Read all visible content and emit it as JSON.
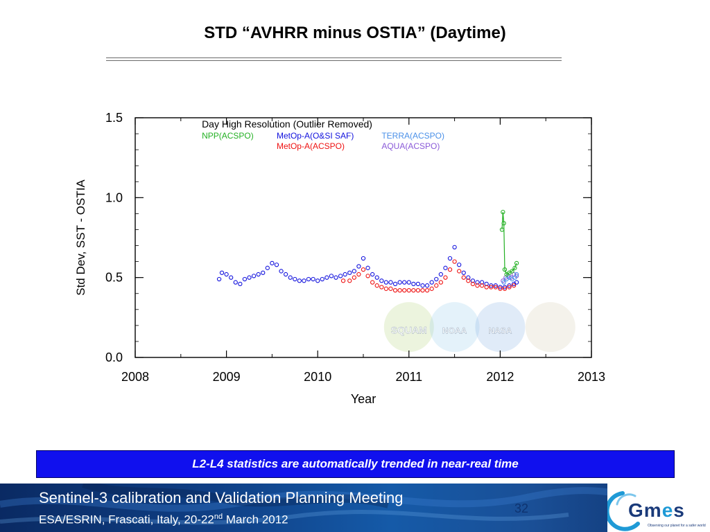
{
  "slide": {
    "title": "STD “AVHRR minus OSTIA” (Daytime)",
    "caption": "L2-L4 statistics are automatically trended in near-real time",
    "footer_line1": "Sentinel-3 calibration and Validation Planning Meeting",
    "footer_line2_pre": "ESA/ESRIN, Frascati, Italy, 20-22",
    "footer_line2_sup": "nd",
    "footer_line2_post": " March 2012",
    "page_number": "32",
    "logo_text": "GMES",
    "logo_tagline": "Observing our planet for a safer world"
  },
  "chart_data": {
    "type": "scatter",
    "title": "",
    "xlabel": "Year",
    "ylabel": "Std Dev,  SST - OSTIA",
    "xlim": [
      2008,
      2013
    ],
    "ylim": [
      0.0,
      1.5
    ],
    "xticks": [
      "2008",
      "2009",
      "2010",
      "2011",
      "2012",
      "2013"
    ],
    "yticks": [
      "0.0",
      "0.5",
      "1.0",
      "1.5"
    ],
    "legend_title": "Day High Resolution (Outlier Removed)",
    "legend_position": "top-left",
    "legend": [
      {
        "name": "NPP(ACSPO)",
        "color": "#22b022"
      },
      {
        "name": "MetOp-A(O&SI SAF)",
        "color": "#1010dd"
      },
      {
        "name": "TERRA(ACSPO)",
        "color": "#4a90e8"
      },
      {
        "name": "MetOp-A(ACSPO)",
        "color": "#ee1111"
      },
      {
        "name": "AQUA(ACSPO)",
        "color": "#8a5ad8"
      }
    ],
    "watermark_labels": [
      "SQUAM",
      "NOAA",
      "NASA"
    ],
    "series": [
      {
        "name": "MetOp-A(O&SI SAF)",
        "color": "#1010dd",
        "points": [
          [
            2008.92,
            0.49
          ],
          [
            2008.95,
            0.53
          ],
          [
            2009.0,
            0.52
          ],
          [
            2009.05,
            0.5
          ],
          [
            2009.1,
            0.47
          ],
          [
            2009.15,
            0.46
          ],
          [
            2009.2,
            0.49
          ],
          [
            2009.25,
            0.5
          ],
          [
            2009.3,
            0.51
          ],
          [
            2009.35,
            0.52
          ],
          [
            2009.4,
            0.53
          ],
          [
            2009.45,
            0.56
          ],
          [
            2009.5,
            0.59
          ],
          [
            2009.55,
            0.58
          ],
          [
            2009.6,
            0.54
          ],
          [
            2009.65,
            0.52
          ],
          [
            2009.7,
            0.5
          ],
          [
            2009.75,
            0.49
          ],
          [
            2009.8,
            0.48
          ],
          [
            2009.85,
            0.48
          ],
          [
            2009.9,
            0.49
          ],
          [
            2009.95,
            0.49
          ],
          [
            2010.0,
            0.48
          ],
          [
            2010.05,
            0.49
          ],
          [
            2010.1,
            0.5
          ],
          [
            2010.15,
            0.51
          ],
          [
            2010.2,
            0.5
          ],
          [
            2010.25,
            0.51
          ],
          [
            2010.3,
            0.52
          ],
          [
            2010.35,
            0.53
          ],
          [
            2010.4,
            0.54
          ],
          [
            2010.45,
            0.57
          ],
          [
            2010.5,
            0.62
          ],
          [
            2010.55,
            0.56
          ],
          [
            2010.6,
            0.52
          ],
          [
            2010.65,
            0.5
          ],
          [
            2010.7,
            0.48
          ],
          [
            2010.75,
            0.47
          ],
          [
            2010.8,
            0.47
          ],
          [
            2010.85,
            0.46
          ],
          [
            2010.9,
            0.47
          ],
          [
            2010.95,
            0.47
          ],
          [
            2011.0,
            0.47
          ],
          [
            2011.05,
            0.46
          ],
          [
            2011.1,
            0.46
          ],
          [
            2011.15,
            0.45
          ],
          [
            2011.2,
            0.45
          ],
          [
            2011.25,
            0.47
          ],
          [
            2011.3,
            0.49
          ],
          [
            2011.35,
            0.52
          ],
          [
            2011.4,
            0.56
          ],
          [
            2011.45,
            0.62
          ],
          [
            2011.5,
            0.69
          ],
          [
            2011.55,
            0.58
          ],
          [
            2011.6,
            0.53
          ],
          [
            2011.65,
            0.5
          ],
          [
            2011.7,
            0.48
          ],
          [
            2011.75,
            0.47
          ],
          [
            2011.8,
            0.47
          ],
          [
            2011.85,
            0.46
          ],
          [
            2011.9,
            0.45
          ],
          [
            2011.95,
            0.45
          ],
          [
            2012.0,
            0.44
          ],
          [
            2012.05,
            0.44
          ],
          [
            2012.1,
            0.45
          ],
          [
            2012.15,
            0.46
          ],
          [
            2012.18,
            0.47
          ]
        ]
      },
      {
        "name": "MetOp-A(ACSPO)",
        "color": "#ee1111",
        "points": [
          [
            2010.28,
            0.48
          ],
          [
            2010.35,
            0.48
          ],
          [
            2010.4,
            0.5
          ],
          [
            2010.45,
            0.52
          ],
          [
            2010.5,
            0.55
          ],
          [
            2010.55,
            0.51
          ],
          [
            2010.6,
            0.47
          ],
          [
            2010.65,
            0.45
          ],
          [
            2010.7,
            0.44
          ],
          [
            2010.75,
            0.43
          ],
          [
            2010.8,
            0.43
          ],
          [
            2010.85,
            0.42
          ],
          [
            2010.9,
            0.42
          ],
          [
            2010.95,
            0.42
          ],
          [
            2011.0,
            0.42
          ],
          [
            2011.05,
            0.42
          ],
          [
            2011.1,
            0.42
          ],
          [
            2011.15,
            0.42
          ],
          [
            2011.2,
            0.42
          ],
          [
            2011.25,
            0.43
          ],
          [
            2011.3,
            0.45
          ],
          [
            2011.35,
            0.47
          ],
          [
            2011.4,
            0.5
          ],
          [
            2011.45,
            0.55
          ],
          [
            2011.5,
            0.6
          ],
          [
            2011.55,
            0.54
          ],
          [
            2011.6,
            0.5
          ],
          [
            2011.65,
            0.48
          ],
          [
            2011.7,
            0.46
          ],
          [
            2011.75,
            0.45
          ],
          [
            2011.8,
            0.45
          ],
          [
            2011.85,
            0.44
          ],
          [
            2011.9,
            0.44
          ],
          [
            2011.95,
            0.44
          ],
          [
            2012.0,
            0.43
          ],
          [
            2012.05,
            0.43
          ],
          [
            2012.1,
            0.44
          ],
          [
            2012.15,
            0.45
          ]
        ]
      },
      {
        "name": "AQUA(ACSPO)",
        "color": "#8a5ad8",
        "points": [
          [
            2012.03,
            0.48
          ],
          [
            2012.06,
            0.5
          ],
          [
            2012.09,
            0.51
          ],
          [
            2012.12,
            0.5
          ],
          [
            2012.15,
            0.52
          ],
          [
            2012.18,
            0.51
          ]
        ]
      },
      {
        "name": "TERRA(ACSPO)",
        "color": "#4a90e8",
        "points": [
          [
            2012.04,
            0.47
          ],
          [
            2012.07,
            0.49
          ],
          [
            2012.1,
            0.5
          ],
          [
            2012.13,
            0.49
          ],
          [
            2012.16,
            0.5
          ],
          [
            2012.18,
            0.52
          ]
        ]
      },
      {
        "name": "NPP(ACSPO)",
        "color": "#22b022",
        "points": [
          [
            2012.02,
            0.8
          ],
          [
            2012.03,
            0.91
          ],
          [
            2012.04,
            0.84
          ],
          [
            2012.05,
            0.55
          ],
          [
            2012.07,
            0.52
          ],
          [
            2012.1,
            0.53
          ],
          [
            2012.13,
            0.54
          ],
          [
            2012.16,
            0.56
          ],
          [
            2012.18,
            0.59
          ]
        ]
      }
    ]
  }
}
